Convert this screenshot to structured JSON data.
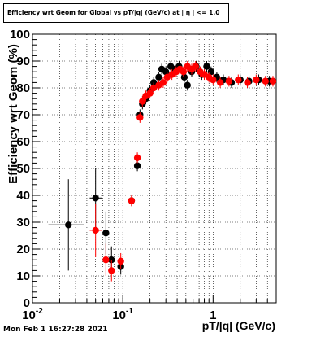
{
  "title": "Efficiency wrt Geom for Global vs pT/|q| (GeV/c) at | η | <= 1.0",
  "footer": "Mon Feb  1 16:27:28 2021",
  "chart_data": {
    "type": "scatter",
    "title": "Efficiency wrt Geom for Global vs pT/|q| (GeV/c) at | η | <= 1.0",
    "xlabel": "pT/|q| (GeV/c)",
    "ylabel": "Efficiency wrt Geom (%)",
    "xscale": "log",
    "xlim": [
      0.01,
      5
    ],
    "ylim": [
      0,
      100
    ],
    "grid": true,
    "x_tick_labels": [
      {
        "value": 0.01,
        "base": "10",
        "exp": "-2"
      },
      {
        "value": 0.1,
        "base": "10",
        "exp": "-1"
      },
      {
        "value": 1,
        "base": "1",
        "exp": ""
      }
    ],
    "y_tick_labels": [
      "0",
      "10",
      "20",
      "30",
      "40",
      "50",
      "60",
      "70",
      "80",
      "90",
      "100"
    ],
    "series": [
      {
        "color": "#000000",
        "points": [
          {
            "x": 0.025,
            "y": 29,
            "xerr_lo": 0.01,
            "xerr_hi": 0.012,
            "yerr": 17
          },
          {
            "x": 0.05,
            "y": 39,
            "xerr_lo": 0.007,
            "xerr_hi": 0.009,
            "yerr": 11
          },
          {
            "x": 0.065,
            "y": 26,
            "xerr_lo": 0.005,
            "xerr_hi": 0.005,
            "yerr": 8
          },
          {
            "x": 0.075,
            "y": 16,
            "xerr_lo": 0.004,
            "xerr_hi": 0.005,
            "yerr": 5
          },
          {
            "x": 0.095,
            "y": 13.5,
            "xerr_lo": 0.006,
            "xerr_hi": 0.007,
            "yerr": 3
          },
          {
            "x": 0.125,
            "y": 38,
            "xerr_lo": 0.006,
            "xerr_hi": 0.006,
            "yerr": 2
          },
          {
            "x": 0.145,
            "y": 51,
            "xerr_lo": 0.005,
            "xerr_hi": 0.005,
            "yerr": 2
          },
          {
            "x": 0.155,
            "y": 70,
            "xerr_lo": 0.004,
            "xerr_hi": 0.004,
            "yerr": 2
          },
          {
            "x": 0.165,
            "y": 74,
            "xerr_lo": 0.005,
            "xerr_hi": 0.005,
            "yerr": 2
          },
          {
            "x": 0.18,
            "y": 76,
            "xerr_lo": 0.006,
            "xerr_hi": 0.006,
            "yerr": 2
          },
          {
            "x": 0.2,
            "y": 79,
            "xerr_lo": 0.006,
            "xerr_hi": 0.006,
            "yerr": 2
          },
          {
            "x": 0.22,
            "y": 82,
            "xerr_lo": 0.006,
            "xerr_hi": 0.006,
            "yerr": 2
          },
          {
            "x": 0.25,
            "y": 84,
            "xerr_lo": 0.008,
            "xerr_hi": 0.008,
            "yerr": 2
          },
          {
            "x": 0.27,
            "y": 87,
            "xerr_lo": 0.008,
            "xerr_hi": 0.008,
            "yerr": 2
          },
          {
            "x": 0.3,
            "y": 86,
            "xerr_lo": 0.01,
            "xerr_hi": 0.01,
            "yerr": 2
          },
          {
            "x": 0.34,
            "y": 88,
            "xerr_lo": 0.01,
            "xerr_hi": 0.01,
            "yerr": 2
          },
          {
            "x": 0.38,
            "y": 87,
            "xerr_lo": 0.012,
            "xerr_hi": 0.012,
            "yerr": 2
          },
          {
            "x": 0.42,
            "y": 88,
            "xerr_lo": 0.014,
            "xerr_hi": 0.014,
            "yerr": 2
          },
          {
            "x": 0.48,
            "y": 84,
            "xerr_lo": 0.016,
            "xerr_hi": 0.016,
            "yerr": 2
          },
          {
            "x": 0.52,
            "y": 81,
            "xerr_lo": 0.015,
            "xerr_hi": 0.015,
            "yerr": 2
          },
          {
            "x": 0.58,
            "y": 86,
            "xerr_lo": 0.02,
            "xerr_hi": 0.02,
            "yerr": 2
          },
          {
            "x": 0.65,
            "y": 88,
            "xerr_lo": 0.02,
            "xerr_hi": 0.02,
            "yerr": 2
          },
          {
            "x": 0.75,
            "y": 85,
            "xerr_lo": 0.03,
            "xerr_hi": 0.03,
            "yerr": 2
          },
          {
            "x": 0.85,
            "y": 88,
            "xerr_lo": 0.03,
            "xerr_hi": 0.03,
            "yerr": 2
          },
          {
            "x": 0.95,
            "y": 86,
            "xerr_lo": 0.03,
            "xerr_hi": 0.03,
            "yerr": 2
          },
          {
            "x": 1.1,
            "y": 84,
            "xerr_lo": 0.05,
            "xerr_hi": 0.05,
            "yerr": 2
          },
          {
            "x": 1.3,
            "y": 83,
            "xerr_lo": 0.08,
            "xerr_hi": 0.08,
            "yerr": 2
          },
          {
            "x": 1.6,
            "y": 82,
            "xerr_lo": 0.1,
            "xerr_hi": 0.1,
            "yerr": 2
          },
          {
            "x": 2.0,
            "y": 83,
            "xerr_lo": 0.15,
            "xerr_hi": 0.15,
            "yerr": 2
          },
          {
            "x": 2.5,
            "y": 82.5,
            "xerr_lo": 0.2,
            "xerr_hi": 0.2,
            "yerr": 2
          },
          {
            "x": 3.2,
            "y": 83,
            "xerr_lo": 0.3,
            "xerr_hi": 0.3,
            "yerr": 2
          },
          {
            "x": 4.2,
            "y": 82.5,
            "xerr_lo": 0.4,
            "xerr_hi": 0.4,
            "yerr": 2
          }
        ]
      },
      {
        "color": "#ff0000",
        "points": [
          {
            "x": 0.05,
            "y": 27,
            "xerr_lo": 0.007,
            "xerr_hi": 0.009,
            "yerr": 10
          },
          {
            "x": 0.065,
            "y": 16,
            "xerr_lo": 0.005,
            "xerr_hi": 0.005,
            "yerr": 6
          },
          {
            "x": 0.075,
            "y": 12,
            "xerr_lo": 0.004,
            "xerr_hi": 0.005,
            "yerr": 4
          },
          {
            "x": 0.095,
            "y": 15.5,
            "xerr_lo": 0.006,
            "xerr_hi": 0.007,
            "yerr": 3
          },
          {
            "x": 0.125,
            "y": 38,
            "xerr_lo": 0.006,
            "xerr_hi": 0.006,
            "yerr": 2
          },
          {
            "x": 0.145,
            "y": 54,
            "xerr_lo": 0.005,
            "xerr_hi": 0.005,
            "yerr": 2
          },
          {
            "x": 0.155,
            "y": 69,
            "xerr_lo": 0.004,
            "xerr_hi": 0.004,
            "yerr": 2
          },
          {
            "x": 0.165,
            "y": 75,
            "xerr_lo": 0.005,
            "xerr_hi": 0.005,
            "yerr": 2
          },
          {
            "x": 0.18,
            "y": 77,
            "xerr_lo": 0.006,
            "xerr_hi": 0.006,
            "yerr": 2
          },
          {
            "x": 0.2,
            "y": 78,
            "xerr_lo": 0.006,
            "xerr_hi": 0.006,
            "yerr": 2
          },
          {
            "x": 0.22,
            "y": 80,
            "xerr_lo": 0.006,
            "xerr_hi": 0.006,
            "yerr": 2
          },
          {
            "x": 0.25,
            "y": 81,
            "xerr_lo": 0.008,
            "xerr_hi": 0.008,
            "yerr": 2
          },
          {
            "x": 0.28,
            "y": 82,
            "xerr_lo": 0.008,
            "xerr_hi": 0.008,
            "yerr": 2
          },
          {
            "x": 0.31,
            "y": 84,
            "xerr_lo": 0.01,
            "xerr_hi": 0.01,
            "yerr": 2
          },
          {
            "x": 0.35,
            "y": 85,
            "xerr_lo": 0.01,
            "xerr_hi": 0.01,
            "yerr": 2
          },
          {
            "x": 0.39,
            "y": 86,
            "xerr_lo": 0.012,
            "xerr_hi": 0.012,
            "yerr": 2
          },
          {
            "x": 0.43,
            "y": 87,
            "xerr_lo": 0.014,
            "xerr_hi": 0.014,
            "yerr": 2
          },
          {
            "x": 0.47,
            "y": 86,
            "xerr_lo": 0.015,
            "xerr_hi": 0.015,
            "yerr": 2
          },
          {
            "x": 0.52,
            "y": 88,
            "xerr_lo": 0.015,
            "xerr_hi": 0.015,
            "yerr": 2
          },
          {
            "x": 0.58,
            "y": 87,
            "xerr_lo": 0.02,
            "xerr_hi": 0.02,
            "yerr": 2
          },
          {
            "x": 0.64,
            "y": 88,
            "xerr_lo": 0.02,
            "xerr_hi": 0.02,
            "yerr": 2
          },
          {
            "x": 0.72,
            "y": 86,
            "xerr_lo": 0.03,
            "xerr_hi": 0.03,
            "yerr": 2
          },
          {
            "x": 0.8,
            "y": 85,
            "xerr_lo": 0.03,
            "xerr_hi": 0.03,
            "yerr": 2
          },
          {
            "x": 0.9,
            "y": 84,
            "xerr_lo": 0.03,
            "xerr_hi": 0.03,
            "yerr": 2
          },
          {
            "x": 1.0,
            "y": 83,
            "xerr_lo": 0.04,
            "xerr_hi": 0.04,
            "yerr": 2
          },
          {
            "x": 1.2,
            "y": 82,
            "xerr_lo": 0.06,
            "xerr_hi": 0.06,
            "yerr": 2
          },
          {
            "x": 1.5,
            "y": 82.5,
            "xerr_lo": 0.1,
            "xerr_hi": 0.1,
            "yerr": 2
          },
          {
            "x": 1.9,
            "y": 83,
            "xerr_lo": 0.15,
            "xerr_hi": 0.15,
            "yerr": 2
          },
          {
            "x": 2.4,
            "y": 82,
            "xerr_lo": 0.2,
            "xerr_hi": 0.2,
            "yerr": 2
          },
          {
            "x": 3.0,
            "y": 83,
            "xerr_lo": 0.25,
            "xerr_hi": 0.25,
            "yerr": 2
          },
          {
            "x": 3.8,
            "y": 82.5,
            "xerr_lo": 0.3,
            "xerr_hi": 0.3,
            "yerr": 2
          },
          {
            "x": 4.6,
            "y": 82.5,
            "xerr_lo": 0.4,
            "xerr_hi": 0.4,
            "yerr": 2
          }
        ]
      }
    ]
  }
}
